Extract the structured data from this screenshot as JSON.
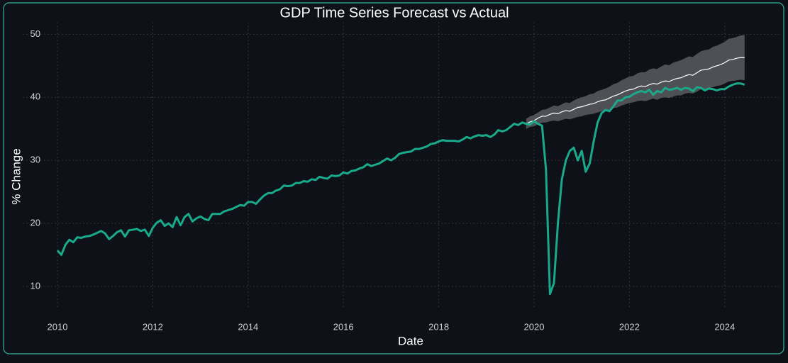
{
  "chart_data": {
    "type": "line",
    "title": "GDP Time Series Forecast vs Actual",
    "x_label": "Date",
    "y_label": "% Change",
    "xlim": [
      2009.28,
      2025.14
    ],
    "ylim": [
      6.74,
      51.89
    ],
    "xticks": [
      2010,
      2012,
      2014,
      2016,
      2018,
      2020,
      2022,
      2024
    ],
    "yticks": [
      10,
      20,
      30,
      40,
      50
    ],
    "grid": true,
    "x": [
      2010,
      2010.083,
      2010.167,
      2010.25,
      2010.333,
      2010.417,
      2010.5,
      2010.583,
      2010.667,
      2010.75,
      2010.833,
      2010.917,
      2011,
      2011.083,
      2011.167,
      2011.25,
      2011.333,
      2011.417,
      2011.5,
      2011.583,
      2011.667,
      2011.75,
      2011.833,
      2011.917,
      2012,
      2012.083,
      2012.167,
      2012.25,
      2012.333,
      2012.417,
      2012.5,
      2012.583,
      2012.667,
      2012.75,
      2012.833,
      2012.917,
      2013,
      2013.083,
      2013.167,
      2013.25,
      2013.333,
      2013.417,
      2013.5,
      2013.583,
      2013.667,
      2013.75,
      2013.833,
      2013.917,
      2014,
      2014.083,
      2014.167,
      2014.25,
      2014.333,
      2014.417,
      2014.5,
      2014.583,
      2014.667,
      2014.75,
      2014.833,
      2014.917,
      2015,
      2015.083,
      2015.167,
      2015.25,
      2015.333,
      2015.417,
      2015.5,
      2015.583,
      2015.667,
      2015.75,
      2015.833,
      2015.917,
      2016,
      2016.083,
      2016.167,
      2016.25,
      2016.333,
      2016.417,
      2016.5,
      2016.583,
      2016.667,
      2016.75,
      2016.833,
      2016.917,
      2017,
      2017.083,
      2017.167,
      2017.25,
      2017.333,
      2017.417,
      2017.5,
      2017.583,
      2017.667,
      2017.75,
      2017.833,
      2017.917,
      2018,
      2018.083,
      2018.167,
      2018.25,
      2018.333,
      2018.417,
      2018.5,
      2018.583,
      2018.667,
      2018.75,
      2018.833,
      2018.917,
      2019,
      2019.083,
      2019.167,
      2019.25,
      2019.333,
      2019.417,
      2019.5,
      2019.583,
      2019.667,
      2019.75,
      2019.833,
      2019.917,
      2020,
      2020.083,
      2020.167,
      2020.25,
      2020.333,
      2020.417,
      2020.5,
      2020.583,
      2020.667,
      2020.75,
      2020.833,
      2020.917,
      2021,
      2021.083,
      2021.167,
      2021.25,
      2021.333,
      2021.417,
      2021.5,
      2021.583,
      2021.667,
      2021.75,
      2021.833,
      2021.917,
      2022,
      2022.083,
      2022.167,
      2022.25,
      2022.333,
      2022.417,
      2022.5,
      2022.583,
      2022.667,
      2022.75,
      2022.833,
      2022.917,
      2023,
      2023.083,
      2023.167,
      2023.25,
      2023.333,
      2023.417,
      2023.5,
      2023.583,
      2023.667,
      2023.75,
      2023.833,
      2023.917,
      2024,
      2024.083,
      2024.167,
      2024.25,
      2024.333,
      2024.417
    ],
    "actual": {
      "color": "#1aa98a",
      "values": [
        15.7,
        15.0,
        16.6,
        17.4,
        17.0,
        17.8,
        17.7,
        17.9,
        18.0,
        18.2,
        18.5,
        18.8,
        18.4,
        17.5,
        18.0,
        18.6,
        18.9,
        17.9,
        18.9,
        19.0,
        19.1,
        18.8,
        19.0,
        18.0,
        19.3,
        20.1,
        20.5,
        19.6,
        20.0,
        19.4,
        21.0,
        19.7,
        21.0,
        21.5,
        20.3,
        20.8,
        21.1,
        20.7,
        20.5,
        21.5,
        21.5,
        21.5,
        21.9,
        22.1,
        22.3,
        22.6,
        22.9,
        22.8,
        23.4,
        23.4,
        23.1,
        23.8,
        24.4,
        24.8,
        24.8,
        25.2,
        25.4,
        26.0,
        25.9,
        26.0,
        26.4,
        26.4,
        26.7,
        26.6,
        27.0,
        26.9,
        27.4,
        27.2,
        27.1,
        27.6,
        27.5,
        27.6,
        28.1,
        27.9,
        28.3,
        28.4,
        28.7,
        28.9,
        29.4,
        29.1,
        29.3,
        29.5,
        29.9,
        30.3,
        30.0,
        30.4,
        31.0,
        31.2,
        31.3,
        31.4,
        31.8,
        31.8,
        32.0,
        32.2,
        32.6,
        32.7,
        33.0,
        33.2,
        33.1,
        33.1,
        33.1,
        33.0,
        33.3,
        33.7,
        33.5,
        33.8,
        34.0,
        33.9,
        34.0,
        33.7,
        34.1,
        34.8,
        34.6,
        34.8,
        35.3,
        35.8,
        35.6,
        36.0,
        35.8,
        35.7,
        36.2,
        35.8,
        35.5,
        28.5,
        8.8,
        10.5,
        20.0,
        27.0,
        30.0,
        31.5,
        32.0,
        30.0,
        31.5,
        28.2,
        29.5,
        33.0,
        36.0,
        37.5,
        38.0,
        37.8,
        38.6,
        39.5,
        39.5,
        40.0,
        40.1,
        40.5,
        40.8,
        41.0,
        40.8,
        41.2,
        40.4,
        41.0,
        40.8,
        41.5,
        41.2,
        41.3,
        41.5,
        41.2,
        41.5,
        41.4,
        41.0,
        41.6,
        41.5,
        41.1,
        41.4,
        41.3,
        41.1,
        41.3,
        41.3,
        41.7,
        42.0,
        42.2,
        42.2,
        42.0
      ]
    },
    "forecast": {
      "color": "#ffffff",
      "band_color": "#5a5c60",
      "x": [
        2019.833,
        2019.917,
        2020,
        2020.083,
        2020.167,
        2020.25,
        2020.333,
        2020.417,
        2020.5,
        2020.583,
        2020.667,
        2020.75,
        2020.833,
        2020.917,
        2021,
        2021.083,
        2021.167,
        2021.25,
        2021.333,
        2021.417,
        2021.5,
        2021.583,
        2021.667,
        2021.75,
        2021.833,
        2021.917,
        2022,
        2022.083,
        2022.167,
        2022.25,
        2022.333,
        2022.417,
        2022.5,
        2022.583,
        2022.667,
        2022.75,
        2022.833,
        2022.917,
        2023,
        2023.083,
        2023.167,
        2023.25,
        2023.333,
        2023.417,
        2023.5,
        2023.583,
        2023.667,
        2023.75,
        2023.833,
        2023.917,
        2024,
        2024.083,
        2024.167,
        2024.25,
        2024.333,
        2024.417
      ],
      "values": [
        35.8,
        36.1,
        36.3,
        36.7,
        37.0,
        37.0,
        37.3,
        37.5,
        37.4,
        37.7,
        37.9,
        37.8,
        38.1,
        38.4,
        38.5,
        38.7,
        38.9,
        39.0,
        39.3,
        39.5,
        39.6,
        39.9,
        40.2,
        40.4,
        40.7,
        41.0,
        41.2,
        41.3,
        41.6,
        41.8,
        41.7,
        42.0,
        42.2,
        42.1,
        42.4,
        42.6,
        42.5,
        42.8,
        43.0,
        43.1,
        43.4,
        43.6,
        43.5,
        43.9,
        44.3,
        44.4,
        44.5,
        44.8,
        45.0,
        45.2,
        45.5,
        45.9,
        46.0,
        46.2,
        46.3,
        46.3
      ],
      "lower": [
        35.0,
        35.3,
        35.4,
        35.7,
        36.0,
        36.0,
        36.2,
        36.3,
        36.2,
        36.4,
        36.6,
        36.5,
        36.7,
        36.9,
        37.0,
        37.2,
        37.3,
        37.4,
        37.6,
        37.8,
        37.8,
        38.0,
        38.3,
        38.4,
        38.7,
        38.9,
        39.1,
        39.2,
        39.4,
        39.5,
        39.4,
        39.6,
        39.8,
        39.6,
        39.9,
        40.0,
        39.9,
        40.1,
        40.3,
        40.3,
        40.6,
        40.7,
        40.6,
        40.9,
        41.3,
        41.3,
        41.4,
        41.6,
        41.8,
        41.9,
        42.2,
        42.5,
        42.6,
        42.7,
        42.8,
        42.7
      ],
      "upper": [
        36.6,
        37.0,
        37.2,
        37.6,
        38.0,
        38.1,
        38.4,
        38.7,
        38.6,
        38.9,
        39.2,
        39.1,
        39.5,
        39.8,
        40.0,
        40.2,
        40.5,
        40.6,
        41.0,
        41.2,
        41.4,
        41.7,
        42.1,
        42.3,
        42.7,
        43.0,
        43.3,
        43.4,
        43.8,
        44.0,
        44.0,
        44.4,
        44.6,
        44.5,
        44.9,
        45.2,
        45.1,
        45.5,
        45.7,
        45.9,
        46.2,
        46.5,
        46.4,
        46.9,
        47.3,
        47.5,
        47.6,
        48.0,
        48.2,
        48.5,
        48.8,
        49.3,
        49.4,
        49.6,
        49.8,
        49.9
      ]
    }
  }
}
